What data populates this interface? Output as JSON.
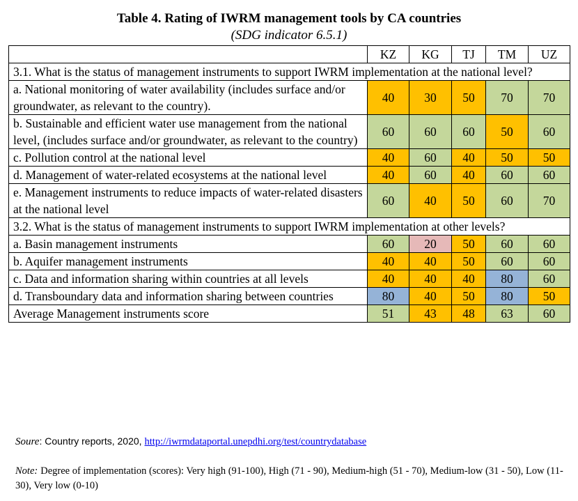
{
  "title": "Table 4. Rating of IWRM management tools by CA countries",
  "subtitle": "(SDG indicator 6.5.1)",
  "table": {
    "columns": [
      "KZ",
      "KG",
      "TJ",
      "TM",
      "UZ"
    ],
    "rows": [
      {
        "section": "3.1. What is the status of management instruments to support IWRM implementation at the national level?"
      },
      {
        "label": "a. National monitoring of water availability (includes surface and/or groundwater, as relevant to the country).",
        "values": [
          40,
          30,
          50,
          70,
          70
        ],
        "colors": [
          "#ffc000",
          "#ffc000",
          "#ffc000",
          "#c4d79b",
          "#c4d79b"
        ]
      },
      {
        "label": "b. Sustainable and efficient water use management from the national level, (includes surface and/or groundwater, as relevant to the country)",
        "values": [
          60,
          60,
          60,
          50,
          60
        ],
        "colors": [
          "#c4d79b",
          "#c4d79b",
          "#c4d79b",
          "#ffc000",
          "#c4d79b"
        ]
      },
      {
        "label": "c. Pollution control at the national level",
        "values": [
          40,
          60,
          40,
          50,
          50
        ],
        "colors": [
          "#ffc000",
          "#c4d79b",
          "#ffc000",
          "#ffc000",
          "#ffc000"
        ]
      },
      {
        "label": "d. Management of water-related ecosystems at the national level",
        "values": [
          40,
          60,
          40,
          60,
          60
        ],
        "colors": [
          "#ffc000",
          "#c4d79b",
          "#ffc000",
          "#c4d79b",
          "#c4d79b"
        ]
      },
      {
        "label": "e. Management instruments to reduce impacts of water-related disasters at the national level",
        "values": [
          60,
          40,
          50,
          60,
          70
        ],
        "colors": [
          "#c4d79b",
          "#ffc000",
          "#ffc000",
          "#c4d79b",
          "#c4d79b"
        ]
      },
      {
        "section": "3.2. What is the status of management instruments to support IWRM implementation at other levels?"
      },
      {
        "label": "a. Basin management instruments",
        "values": [
          60,
          20,
          50,
          60,
          60
        ],
        "colors": [
          "#c4d79b",
          "#e6b9b8",
          "#ffc000",
          "#c4d79b",
          "#c4d79b"
        ]
      },
      {
        "label": "b. Aquifer management instruments",
        "values": [
          40,
          40,
          50,
          60,
          60
        ],
        "colors": [
          "#ffc000",
          "#ffc000",
          "#ffc000",
          "#c4d79b",
          "#c4d79b"
        ]
      },
      {
        "label": "c. Data and information sharing within countries at all levels",
        "values": [
          40,
          40,
          40,
          80,
          60
        ],
        "colors": [
          "#ffc000",
          "#ffc000",
          "#ffc000",
          "#95b3d7",
          "#c4d79b"
        ]
      },
      {
        "label": "d. Transboundary data and information sharing between countries",
        "values": [
          80,
          40,
          50,
          80,
          50
        ],
        "colors": [
          "#95b3d7",
          "#ffc000",
          "#ffc000",
          "#95b3d7",
          "#ffc000"
        ]
      },
      {
        "label": "Average Management instruments score",
        "values": [
          51,
          43,
          48,
          63,
          60
        ],
        "colors": [
          "#c4d79b",
          "#ffc000",
          "#ffc000",
          "#c4d79b",
          "#c4d79b"
        ]
      }
    ]
  },
  "source": {
    "label": "Soure",
    "text": ": Country reports, 2020,",
    "link": "http://iwrmdataportal.unepdhi.org/test/countrydatabase"
  },
  "note": {
    "label": "Note:",
    "text": "Degree of implementation (scores): Very high (91-100), High (71 - 90), Medium-high (51 - 70), Medium-low (31 - 50), Low (11-30), Very low (0-10)"
  }
}
